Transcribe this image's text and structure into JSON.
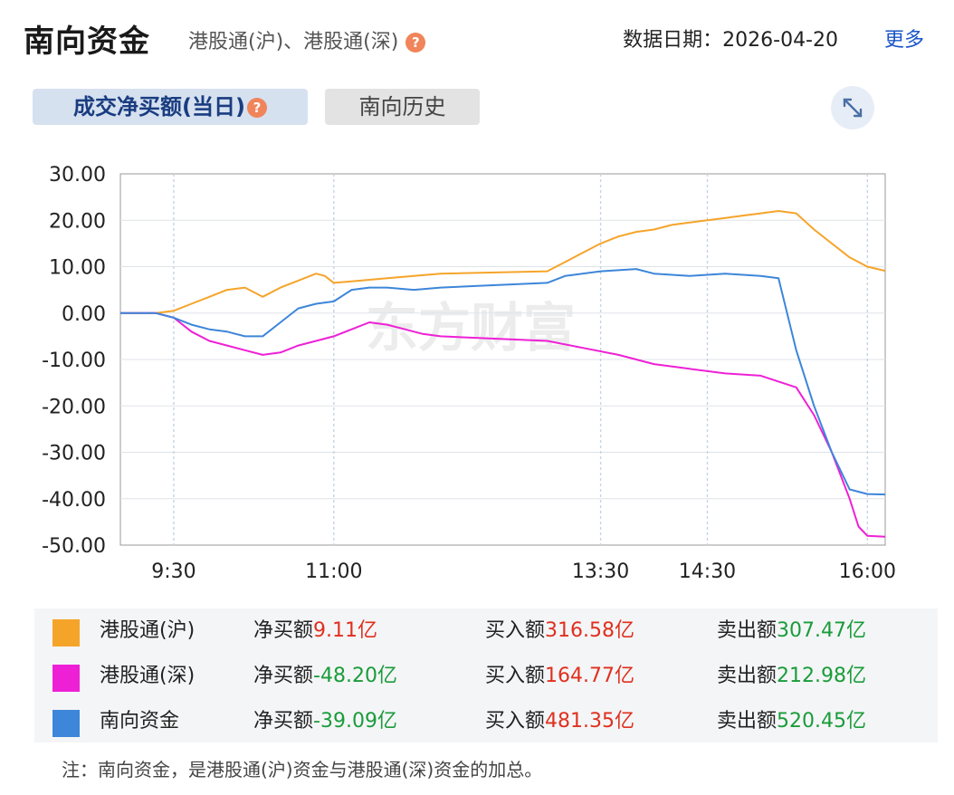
{
  "header": {
    "title": "南向资金",
    "subtitle": "港股通(沪)、港股通(深)",
    "date_label": "数据日期：2026-04-20",
    "more_label": "更多"
  },
  "tabs": [
    {
      "label": "成交净买额(当日)",
      "active": true
    },
    {
      "label": "南向历史",
      "active": false
    }
  ],
  "icons": {
    "help": "question-circle-icon",
    "expand": "expand-arrows-icon"
  },
  "watermark": "东方财富",
  "colors": {
    "hgt_sh": "#f5a42a",
    "hgt_sz": "#ee20d6",
    "southbound": "#3d86d9"
  },
  "chart_data": {
    "type": "line",
    "ylim": [
      -50,
      30
    ],
    "yticks": [
      "30.00",
      "20.00",
      "10.00",
      "0.00",
      "-10.00",
      "-20.00",
      "-30.00",
      "-40.00",
      "-50.00"
    ],
    "xticks": [
      "9:30",
      "11:00",
      "13:30",
      "14:30",
      "16:00"
    ],
    "x_domain": [
      "9:00",
      "16:10"
    ],
    "grid": true,
    "series": [
      {
        "name": "港股通(沪)",
        "color": "#f5a42a",
        "x": [
          "9:00",
          "9:20",
          "9:30",
          "9:40",
          "9:50",
          "10:00",
          "10:10",
          "10:20",
          "10:30",
          "10:40",
          "10:50",
          "10:55",
          "11:00",
          "11:15",
          "11:30",
          "11:45",
          "12:00",
          "13:00",
          "13:10",
          "13:20",
          "13:30",
          "13:40",
          "13:50",
          "14:00",
          "14:10",
          "14:20",
          "14:30",
          "14:40",
          "14:50",
          "15:00",
          "15:10",
          "15:20",
          "15:30",
          "15:40",
          "15:50",
          "16:00",
          "16:10"
        ],
        "values": [
          0,
          0,
          0.5,
          2,
          3.5,
          5,
          5.5,
          3.5,
          5.5,
          7,
          8.5,
          8,
          6.5,
          7,
          7.5,
          8,
          8.5,
          9,
          11,
          13,
          15,
          16.5,
          17.5,
          18,
          19,
          19.5,
          20,
          20.5,
          21,
          21.5,
          22,
          21.5,
          18,
          15,
          12,
          10,
          9.11
        ]
      },
      {
        "name": "港股通(深)",
        "color": "#ee20d6",
        "x": [
          "9:00",
          "9:20",
          "9:30",
          "9:40",
          "9:50",
          "10:00",
          "10:10",
          "10:20",
          "10:30",
          "10:40",
          "10:50",
          "11:00",
          "11:10",
          "11:20",
          "11:30",
          "11:40",
          "11:50",
          "12:00",
          "13:00",
          "13:20",
          "13:40",
          "14:00",
          "14:20",
          "14:40",
          "15:00",
          "15:20",
          "15:30",
          "15:40",
          "15:50",
          "15:55",
          "16:00",
          "16:10"
        ],
        "values": [
          0,
          0,
          -1,
          -4,
          -6,
          -7,
          -8,
          -9,
          -8.5,
          -7,
          -6,
          -5,
          -3.5,
          -2,
          -2.5,
          -3.5,
          -4.5,
          -5,
          -6,
          -7.5,
          -9,
          -11,
          -12,
          -13,
          -13.5,
          -16,
          -22,
          -30,
          -40,
          -46,
          -48,
          -48.2
        ]
      },
      {
        "name": "南向资金",
        "color": "#3d86d9",
        "x": [
          "9:00",
          "9:20",
          "9:30",
          "9:40",
          "9:50",
          "10:00",
          "10:10",
          "10:20",
          "10:30",
          "10:40",
          "10:50",
          "11:00",
          "11:10",
          "11:20",
          "11:30",
          "11:45",
          "12:00",
          "13:00",
          "13:10",
          "13:30",
          "13:50",
          "14:00",
          "14:20",
          "14:40",
          "15:00",
          "15:10",
          "15:20",
          "15:30",
          "15:40",
          "15:50",
          "16:00",
          "16:10"
        ],
        "values": [
          0,
          0,
          -1,
          -2.5,
          -3.5,
          -4,
          -5,
          -5,
          -2,
          1,
          2,
          2.5,
          5,
          5.5,
          5.5,
          5,
          5.5,
          6.5,
          8,
          9,
          9.5,
          8.5,
          8,
          8.5,
          8,
          7.5,
          -8,
          -20,
          -30,
          -38,
          -39,
          -39.09
        ]
      }
    ]
  },
  "legend": {
    "rows": [
      {
        "name": "港股通(沪)",
        "color": "#f5a42a",
        "net_label": "净买额",
        "net_value": "9.11亿",
        "net_color": "red",
        "buy_label": "买入额",
        "buy_value": "316.58亿",
        "sell_label": "卖出额",
        "sell_value": "307.47亿"
      },
      {
        "name": "港股通(深)",
        "color": "#ee20d6",
        "net_label": "净买额",
        "net_value": "-48.20亿",
        "net_color": "green",
        "buy_label": "买入额",
        "buy_value": "164.77亿",
        "sell_label": "卖出额",
        "sell_value": "212.98亿"
      },
      {
        "name": "南向资金",
        "color": "#3d86d9",
        "net_label": "净买额",
        "net_value": "-39.09亿",
        "net_color": "green",
        "buy_label": "买入额",
        "buy_value": "481.35亿",
        "sell_label": "卖出额",
        "sell_value": "520.45亿"
      }
    ]
  },
  "note": "注：南向资金，是港股通(沪)资金与港股通(深)资金的加总。"
}
